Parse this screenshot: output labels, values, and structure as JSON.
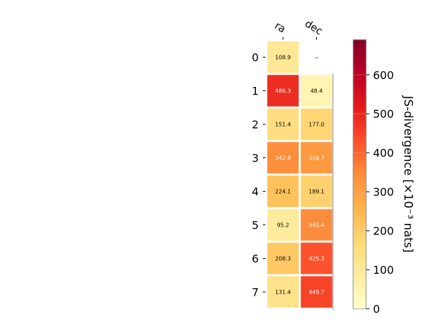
{
  "chart_data": {
    "type": "heatmap",
    "title": "",
    "xlabel": "",
    "ylabel": "",
    "columns": [
      "ra",
      "dec"
    ],
    "rows": [
      "0",
      "1",
      "2",
      "3",
      "4",
      "5",
      "6",
      "7"
    ],
    "values": [
      [
        108.9,
        null
      ],
      [
        486.3,
        48.4
      ],
      [
        151.4,
        177.0
      ],
      [
        342.8,
        316.7
      ],
      [
        224.1,
        189.1
      ],
      [
        95.2,
        345.4
      ],
      [
        208.3,
        425.3
      ],
      [
        131.4,
        449.7
      ]
    ],
    "cell_labels": [
      [
        "108.9",
        "--"
      ],
      [
        "486.3",
        "48.4"
      ],
      [
        "151.4",
        "177.0"
      ],
      [
        "342.8",
        "316.7"
      ],
      [
        "224.1",
        "189.1"
      ],
      [
        "95.2",
        "345.4"
      ],
      [
        "208.3",
        "425.3"
      ],
      [
        "131.4",
        "449.7"
      ]
    ],
    "colorbar": {
      "label": "JS-divergence [×10⁻³ nats]",
      "min": 0,
      "max": 690,
      "ticks": [
        0,
        100,
        200,
        300,
        400,
        500,
        600
      ],
      "tick_labels": [
        "0",
        "100",
        "200",
        "300",
        "400",
        "500",
        "600"
      ],
      "colormap": "YlOrRd",
      "colormap_stops": [
        "#ffffcc",
        "#ffeda0",
        "#fed976",
        "#feb24c",
        "#fd8d3c",
        "#fc4e2a",
        "#e31a1c",
        "#bd0026",
        "#800026"
      ]
    },
    "grid": false,
    "legend": "colorbar-right"
  }
}
